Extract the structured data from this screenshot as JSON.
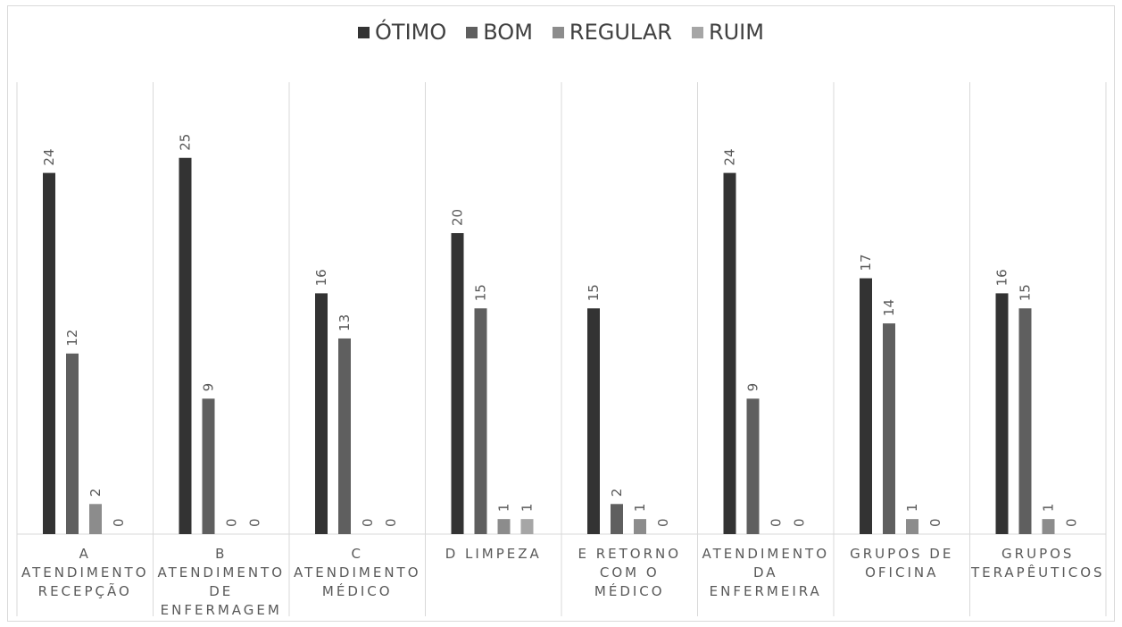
{
  "chart_data": {
    "type": "bar",
    "title": "",
    "xlabel": "",
    "ylabel": "",
    "ylim": [
      0,
      27
    ],
    "grid": "vertical separators between categories",
    "legend_position": "top",
    "categories": [
      "A ATENDIMENTO RECEPÇÃO",
      "B ATENDIMENTO DE ENFERMAGEM",
      "C ATENDIMENTO MÉDICO",
      "D LIMPEZA",
      "E RETORNO COM O MÉDICO",
      "ATENDIMENTO DA ENFERMEIRA",
      "GRUPOS DE OFICINA",
      "GRUPOS TERAPÊUTICOS"
    ],
    "category_lines": [
      "A\nATENDIMENTO\nRECEPÇÃO",
      "B\nATENDIMENTO\nDE\nENFERMAGEM",
      "C\nATENDIMENTO\nMÉDICO",
      "D LIMPEZA",
      "E RETORNO\nCOM O\nMÉDICO",
      "ATENDIMENTO\nDA\nENFERMEIRA",
      "GRUPOS DE\nOFICINA",
      "GRUPOS\nTERAPÊUTICOS"
    ],
    "series": [
      {
        "name": "ÓTIMO",
        "color": "#333333",
        "values": [
          24,
          25,
          16,
          20,
          15,
          24,
          17,
          16
        ]
      },
      {
        "name": "BOM",
        "color": "#5f5f5f",
        "values": [
          12,
          9,
          13,
          15,
          2,
          9,
          14,
          15
        ]
      },
      {
        "name": "REGULAR",
        "color": "#8c8c8c",
        "values": [
          2,
          0,
          0,
          1,
          1,
          0,
          1,
          1
        ]
      },
      {
        "name": "RUIM",
        "color": "#a6a6a6",
        "values": [
          0,
          0,
          0,
          1,
          0,
          0,
          0,
          0
        ]
      }
    ]
  }
}
